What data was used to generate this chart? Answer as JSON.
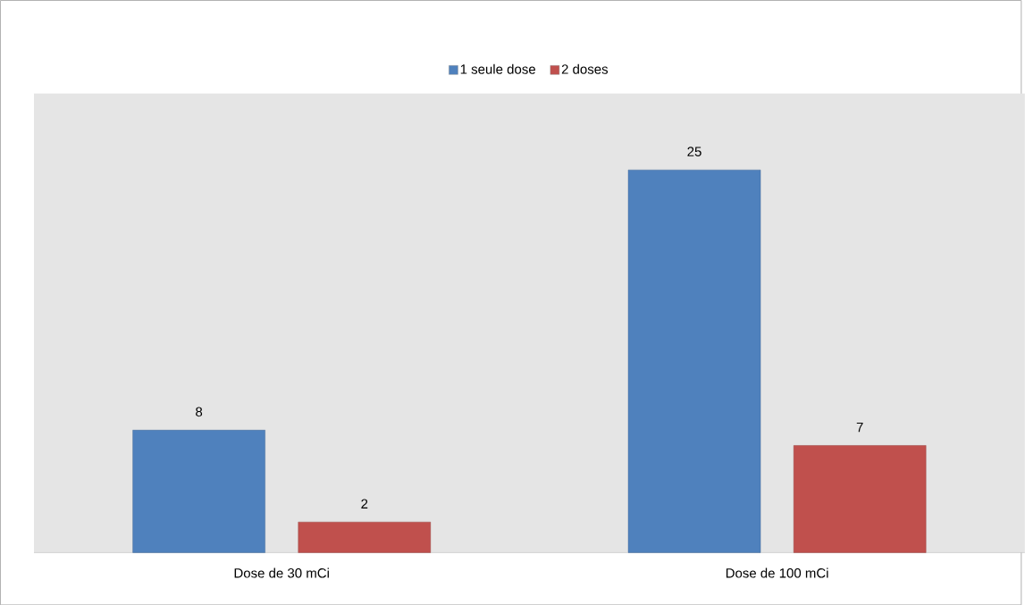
{
  "chart_data": {
    "type": "bar",
    "categories": [
      "Dose de 30 mCi",
      "Dose de 100 mCi"
    ],
    "series": [
      {
        "name": "1 seule dose",
        "color": "#4f81bd",
        "values": [
          8,
          25
        ]
      },
      {
        "name": "2 doses",
        "color": "#c0504d",
        "values": [
          2,
          7
        ]
      }
    ],
    "data_labels": true,
    "legend": "top",
    "tick_labels": "x",
    "grid": false
  }
}
